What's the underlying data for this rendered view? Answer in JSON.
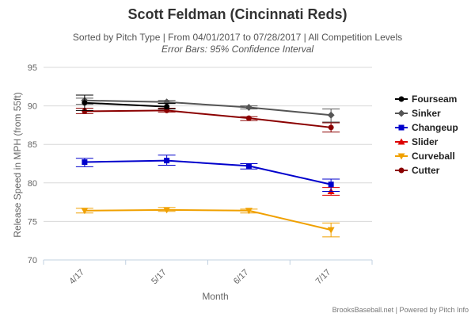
{
  "chart_data": {
    "type": "line",
    "title": "Scott Feldman (Cincinnati Reds)",
    "subtitle": "Sorted by Pitch Type | From 04/01/2017 to 07/28/2017 | All Competition Levels",
    "subtitle2": "Error Bars: 95% Confidence Interval",
    "xlabel": "Month",
    "ylabel": "Release Speed in MPH (from 55ft)",
    "categories": [
      "4/17",
      "5/17",
      "6/17",
      "7/17"
    ],
    "ylim": [
      70,
      95
    ],
    "yticks": [
      70,
      75,
      80,
      85,
      90,
      95
    ],
    "grid": true,
    "legend_position": "right",
    "series": [
      {
        "name": "Fourseam",
        "color": "#000000",
        "marker": "circle",
        "points": [
          {
            "x": "4/17",
            "y": 90.4,
            "lo": 89.4,
            "hi": 91.4
          },
          {
            "x": "5/17",
            "y": 89.9,
            "lo": 89.6,
            "hi": 90.3
          }
        ]
      },
      {
        "name": "Sinker",
        "color": "#555555",
        "marker": "diamond",
        "points": [
          {
            "x": "4/17",
            "y": 90.7,
            "lo": 90.2,
            "hi": 91.0
          },
          {
            "x": "5/17",
            "y": 90.5,
            "lo": 90.3,
            "hi": 90.7
          },
          {
            "x": "6/17",
            "y": 89.8,
            "lo": 89.6,
            "hi": 90.0
          },
          {
            "x": "7/17",
            "y": 88.8,
            "lo": 87.9,
            "hi": 89.6
          }
        ]
      },
      {
        "name": "Changeup",
        "color": "#0000cc",
        "marker": "square",
        "points": [
          {
            "x": "4/17",
            "y": 82.7,
            "lo": 82.1,
            "hi": 83.2
          },
          {
            "x": "5/17",
            "y": 82.9,
            "lo": 82.3,
            "hi": 83.6
          },
          {
            "x": "6/17",
            "y": 82.2,
            "lo": 81.8,
            "hi": 82.5
          },
          {
            "x": "7/17",
            "y": 79.8,
            "lo": 78.9,
            "hi": 80.5
          }
        ]
      },
      {
        "name": "Slider",
        "color": "#dd0000",
        "marker": "triangle",
        "points": [
          {
            "x": "7/17",
            "y": 78.9,
            "lo": 78.4,
            "hi": 79.4
          }
        ]
      },
      {
        "name": "Curveball",
        "color": "#f0a000",
        "marker": "triangle-down",
        "points": [
          {
            "x": "4/17",
            "y": 76.4,
            "lo": 76.1,
            "hi": 76.7
          },
          {
            "x": "5/17",
            "y": 76.5,
            "lo": 76.3,
            "hi": 76.8
          },
          {
            "x": "6/17",
            "y": 76.4,
            "lo": 76.1,
            "hi": 76.6
          },
          {
            "x": "7/17",
            "y": 73.9,
            "lo": 73.0,
            "hi": 74.8
          }
        ]
      },
      {
        "name": "Cutter",
        "color": "#8b0000",
        "marker": "circle",
        "points": [
          {
            "x": "4/17",
            "y": 89.3,
            "lo": 89.0,
            "hi": 89.7
          },
          {
            "x": "5/17",
            "y": 89.4,
            "lo": 89.2,
            "hi": 89.7
          },
          {
            "x": "6/17",
            "y": 88.4,
            "lo": 88.1,
            "hi": 88.6
          },
          {
            "x": "7/17",
            "y": 87.2,
            "lo": 86.6,
            "hi": 87.8
          }
        ]
      }
    ]
  },
  "credits": "BrooksBaseball.net | Powered by Pitch Info"
}
